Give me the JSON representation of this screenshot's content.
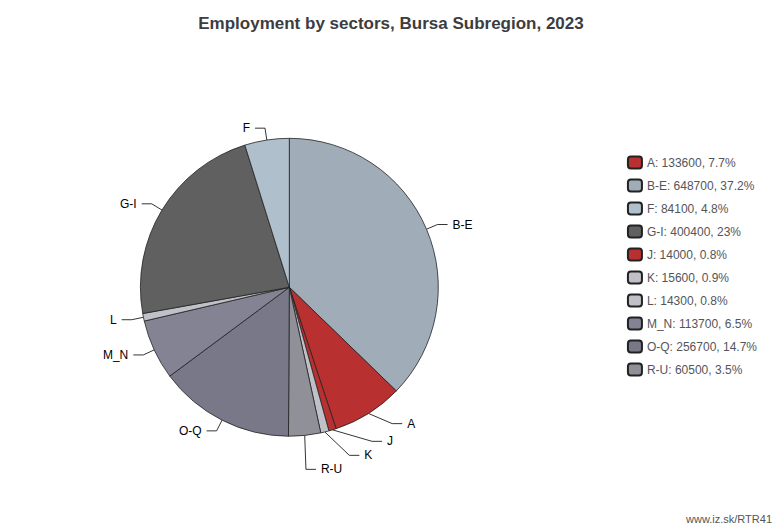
{
  "chart_data": {
    "type": "pie",
    "title": "Employment by sectors, Bursa Subregion, 2023",
    "categories": [
      "B-E",
      "A",
      "J",
      "K",
      "R-U",
      "O-Q",
      "M_N",
      "L",
      "G-I",
      "F"
    ],
    "values": [
      648700,
      133600,
      14000,
      15600,
      60500,
      256700,
      113700,
      14300,
      400400,
      84100
    ],
    "colors": [
      "#a0adb8",
      "#b83030",
      "#b83030",
      "#c0c0c8",
      "#909098",
      "#787888",
      "#838393",
      "#c0c0c8",
      "#606060",
      "#b0bfcc"
    ],
    "legend": "right",
    "legend_entries": [
      {
        "category": "A",
        "text": "A: 133600, 7.7%"
      },
      {
        "category": "B-E",
        "text": "B-E: 648700, 37.2%"
      },
      {
        "category": "F",
        "text": "F: 84100, 4.8%"
      },
      {
        "category": "G-I",
        "text": "G-I: 400400, 23%"
      },
      {
        "category": "J",
        "text": "J: 14000, 0.8%"
      },
      {
        "category": "K",
        "text": "K: 15600, 0.9%"
      },
      {
        "category": "L",
        "text": "L: 14300, 0.8%"
      },
      {
        "category": "M_N",
        "text": "M_N: 113700, 6.5%"
      },
      {
        "category": "O-Q",
        "text": "O-Q: 256700, 14.7%"
      },
      {
        "category": "R-U",
        "text": "R-U: 60500, 3.5%"
      }
    ],
    "annotations": [
      "www.iz.sk/RTR41"
    ]
  }
}
